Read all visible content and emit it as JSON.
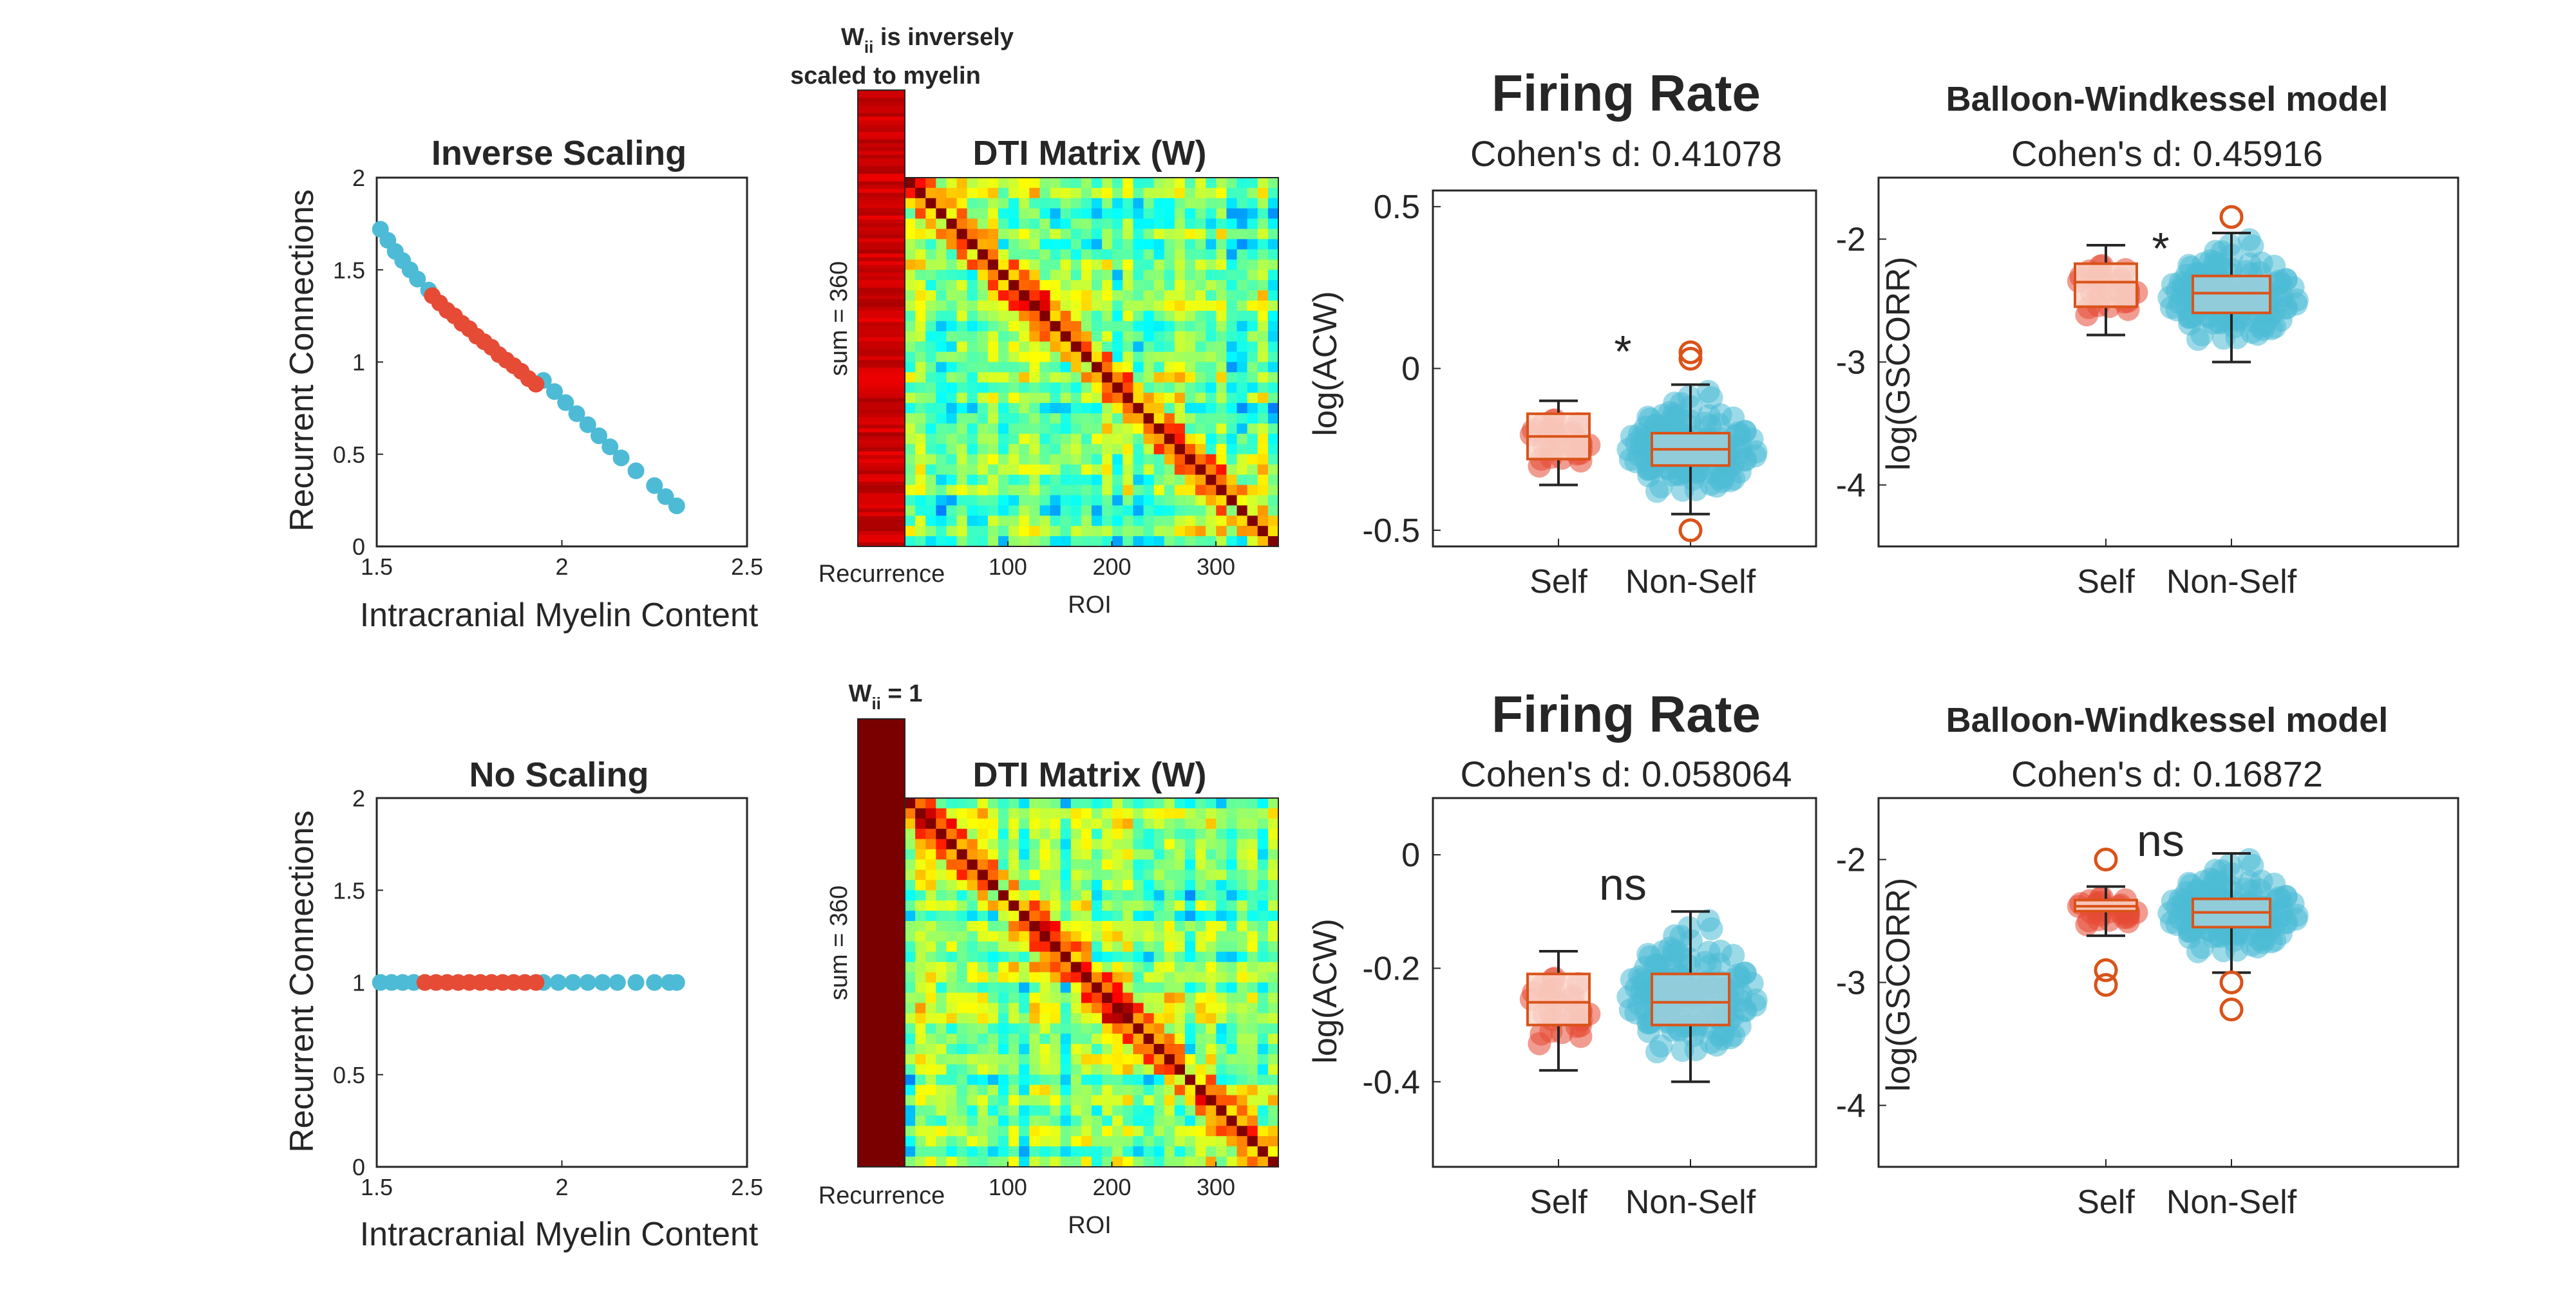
{
  "colors": {
    "self": "#E64B35",
    "non_self": "#4DBBD5",
    "box_line": "#D95319",
    "recurrence_top": "#C00000",
    "recurrence_bottom": "#7A0000"
  },
  "rows": [
    {
      "scatter_title": "Inverse Scaling",
      "annotation_line1": "W",
      "annotation_sub": "ii",
      "annotation_rest1": " is inversely",
      "annotation_line2": "scaled to myelin",
      "sum_label": "sum = 360",
      "dti_title": "DTI Matrix (W)",
      "firing_title": "Firing Rate",
      "firing_cohen": "Cohen's d: 0.41078",
      "firing_sig": "*",
      "bw_title": "Balloon-Windkessel model",
      "bw_cohen": "Cohen's d: 0.45916",
      "bw_sig": "*"
    },
    {
      "scatter_title": "No Scaling",
      "annotation_line1": "W",
      "annotation_sub": "ii",
      "annotation_rest1": " = 1",
      "annotation_line2": "",
      "sum_label": "sum = 360",
      "dti_title": "DTI Matrix (W)",
      "firing_title": "Firing Rate",
      "firing_cohen": "Cohen's d: 0.058064",
      "firing_sig": "ns",
      "bw_title": "Balloon-Windkessel model",
      "bw_cohen": "Cohen's d: 0.16872",
      "bw_sig": "ns"
    }
  ],
  "labels": {
    "scatter_xlabel": "Intracranial Myelin Content",
    "scatter_ylabel": "Recurrent Connections",
    "recurrence_xlabel": "Recurrence",
    "dti_xlabel": "ROI",
    "firing_ylabel": "log(ACW)",
    "bw_ylabel": "log(GSCORR)",
    "group_self": "Self",
    "group_non_self": "Non-Self"
  },
  "ticks": {
    "scatter_x": [
      "1.5",
      "2",
      "2.5"
    ],
    "scatter_y": [
      "0",
      "0.5",
      "1",
      "1.5",
      "2"
    ],
    "dti_x": [
      "100",
      "200",
      "300"
    ],
    "firing_top_y": [
      "-0.5",
      "0",
      "0.5"
    ],
    "firing_bottom_y": [
      "-0.4",
      "-0.2",
      "0"
    ],
    "bw_y": [
      "-4",
      "-3",
      "-2"
    ]
  },
  "chart_data": [
    {
      "panel": "top-scatter",
      "type": "scatter",
      "title": "Inverse Scaling",
      "xlabel": "Intracranial Myelin Content",
      "ylabel": "Recurrent Connections",
      "xlim": [
        1.5,
        2.5
      ],
      "ylim": [
        0,
        2
      ],
      "series": [
        {
          "name": "Non-Self",
          "x": [
            1.51,
            1.53,
            1.55,
            1.57,
            1.59,
            1.61,
            1.64,
            1.95,
            1.98,
            2.01,
            2.04,
            2.07,
            2.1,
            2.13,
            2.16,
            2.2,
            2.25,
            2.28,
            2.31
          ],
          "y": [
            1.72,
            1.66,
            1.6,
            1.55,
            1.5,
            1.45,
            1.39,
            0.9,
            0.84,
            0.78,
            0.72,
            0.66,
            0.6,
            0.54,
            0.48,
            0.41,
            0.33,
            0.27,
            0.22
          ]
        },
        {
          "name": "Self",
          "x": [
            1.65,
            1.67,
            1.69,
            1.71,
            1.73,
            1.75,
            1.77,
            1.79,
            1.81,
            1.83,
            1.85,
            1.87,
            1.89,
            1.91,
            1.93
          ],
          "y": [
            1.36,
            1.32,
            1.28,
            1.25,
            1.21,
            1.18,
            1.14,
            1.11,
            1.08,
            1.04,
            1.01,
            0.98,
            0.95,
            0.91,
            0.88
          ]
        }
      ]
    },
    {
      "panel": "bottom-scatter",
      "type": "scatter",
      "title": "No Scaling",
      "xlabel": "Intracranial Myelin Content",
      "ylabel": "Recurrent Connections",
      "xlim": [
        1.5,
        2.5
      ],
      "ylim": [
        0,
        2
      ],
      "series": [
        {
          "name": "Non-Self",
          "x": [
            1.51,
            1.54,
            1.57,
            1.6,
            1.95,
            1.99,
            2.03,
            2.07,
            2.11,
            2.15,
            2.2,
            2.25,
            2.29,
            2.31
          ],
          "y": [
            1,
            1,
            1,
            1,
            1,
            1,
            1,
            1,
            1,
            1,
            1,
            1,
            1,
            1
          ]
        },
        {
          "name": "Self",
          "x": [
            1.63,
            1.66,
            1.69,
            1.72,
            1.75,
            1.78,
            1.81,
            1.84,
            1.87,
            1.9,
            1.93
          ],
          "y": [
            1,
            1,
            1,
            1,
            1,
            1,
            1,
            1,
            1,
            1,
            1
          ]
        }
      ]
    },
    {
      "panel": "top-heatmap",
      "type": "heatmap",
      "title": "DTI Matrix (W)",
      "xlabel": "ROI",
      "xlim": [
        1,
        360
      ],
      "ylim": [
        1,
        360
      ],
      "x_ticks": [
        100,
        200,
        300
      ],
      "recurrence_label": "Recurrence",
      "side_label": "sum = 360"
    },
    {
      "panel": "bottom-heatmap",
      "type": "heatmap",
      "title": "DTI Matrix (W)",
      "xlabel": "ROI",
      "xlim": [
        1,
        360
      ],
      "ylim": [
        1,
        360
      ],
      "x_ticks": [
        100,
        200,
        300
      ],
      "recurrence_label": "Recurrence",
      "side_label": "sum = 360"
    },
    {
      "panel": "top-firing-rate",
      "type": "box",
      "title": "Firing Rate",
      "subtitle": "Cohen's d: 0.41078",
      "ylabel": "log(ACW)",
      "ylim": [
        -0.55,
        0.55
      ],
      "categories": [
        "Self",
        "Non-Self"
      ],
      "series": [
        {
          "name": "Self",
          "q1": -0.28,
          "median": -0.21,
          "q3": -0.14,
          "whisker_low": -0.36,
          "whisker_high": -0.1,
          "outliers": []
        },
        {
          "name": "Non-Self",
          "q1": -0.3,
          "median": -0.25,
          "q3": -0.2,
          "whisker_low": -0.45,
          "whisker_high": -0.05,
          "outliers": [
            -0.5,
            0.03,
            0.05
          ]
        }
      ],
      "annotation": "*"
    },
    {
      "panel": "top-balloon-windkessel",
      "type": "box",
      "title": "Balloon-Windkessel model",
      "subtitle": "Cohen's d: 0.45916",
      "ylabel": "log(GSCORR)",
      "ylim": [
        -4.5,
        -1.5
      ],
      "categories": [
        "Self",
        "Non-Self"
      ],
      "series": [
        {
          "name": "Self",
          "q1": -2.55,
          "median": -2.35,
          "q3": -2.2,
          "whisker_low": -2.78,
          "whisker_high": -2.05,
          "outliers": []
        },
        {
          "name": "Non-Self",
          "q1": -2.6,
          "median": -2.44,
          "q3": -2.3,
          "whisker_low": -3.0,
          "whisker_high": -1.95,
          "outliers": [
            -1.82
          ]
        }
      ],
      "annotation": "*"
    },
    {
      "panel": "bottom-firing-rate",
      "type": "box",
      "title": "Firing Rate",
      "subtitle": "Cohen's d: 0.058064",
      "ylabel": "log(ACW)",
      "ylim": [
        -0.55,
        0.1
      ],
      "categories": [
        "Self",
        "Non-Self"
      ],
      "series": [
        {
          "name": "Self",
          "q1": -0.3,
          "median": -0.26,
          "q3": -0.21,
          "whisker_low": -0.38,
          "whisker_high": -0.17,
          "outliers": []
        },
        {
          "name": "Non-Self",
          "q1": -0.3,
          "median": -0.26,
          "q3": -0.21,
          "whisker_low": -0.4,
          "whisker_high": -0.1,
          "outliers": []
        }
      ],
      "annotation": "ns"
    },
    {
      "panel": "bottom-balloon-windkessel",
      "type": "box",
      "title": "Balloon-Windkessel model",
      "subtitle": "Cohen's d: 0.16872",
      "ylabel": "log(GSCORR)",
      "ylim": [
        -4.5,
        -1.5
      ],
      "categories": [
        "Self",
        "Non-Self"
      ],
      "series": [
        {
          "name": "Self",
          "q1": -2.42,
          "median": -2.38,
          "q3": -2.33,
          "whisker_low": -2.62,
          "whisker_high": -2.22,
          "outliers": [
            -2.0,
            -2.9,
            -3.02
          ]
        },
        {
          "name": "Non-Self",
          "q1": -2.55,
          "median": -2.43,
          "q3": -2.32,
          "whisker_low": -2.92,
          "whisker_high": -1.95,
          "outliers": [
            -3.0,
            -3.22
          ]
        }
      ],
      "annotation": "ns"
    }
  ]
}
